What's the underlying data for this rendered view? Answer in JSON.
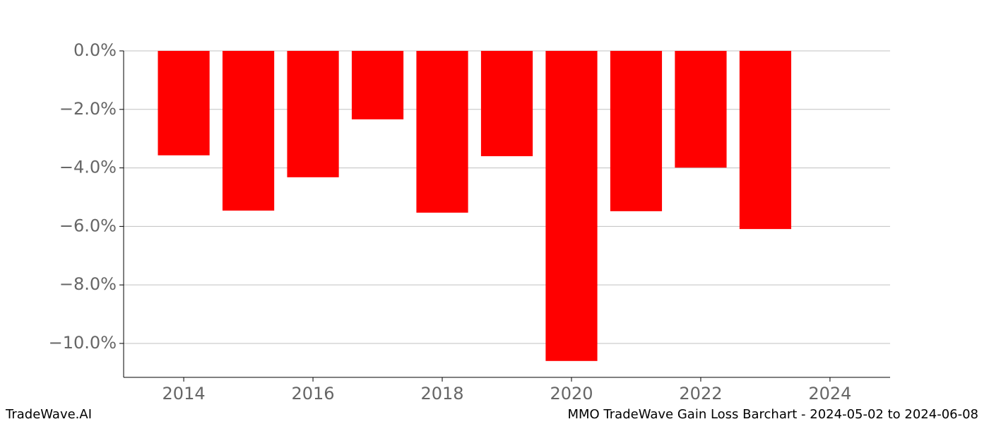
{
  "chart_data": {
    "type": "bar",
    "title": "MMO TradeWave Gain Loss Barchart - 2024-05-02 to 2024-06-08",
    "source": "TradeWave.AI",
    "x": [
      2014,
      2015,
      2016,
      2017,
      2018,
      2019,
      2020,
      2021,
      2022,
      2023
    ],
    "values": [
      -3.57,
      -5.46,
      -4.32,
      -2.34,
      -5.53,
      -3.6,
      -10.6,
      -5.48,
      -3.99,
      -6.09
    ],
    "color": "#ff0000",
    "xlim": [
      2013.07,
      2024.93
    ],
    "xticks": [
      2014,
      2016,
      2018,
      2020,
      2022,
      2024
    ],
    "ylim": [
      -11.16,
      0
    ],
    "yticks": [
      {
        "value": 0,
        "label": "0.0%"
      },
      {
        "value": -2,
        "label": "−2.0%"
      },
      {
        "value": -4,
        "label": "−4.0%"
      },
      {
        "value": -6,
        "label": "−6.0%"
      },
      {
        "value": -8,
        "label": "−8.0%"
      },
      {
        "value": -10,
        "label": "−10.0%"
      }
    ],
    "grid": true
  }
}
